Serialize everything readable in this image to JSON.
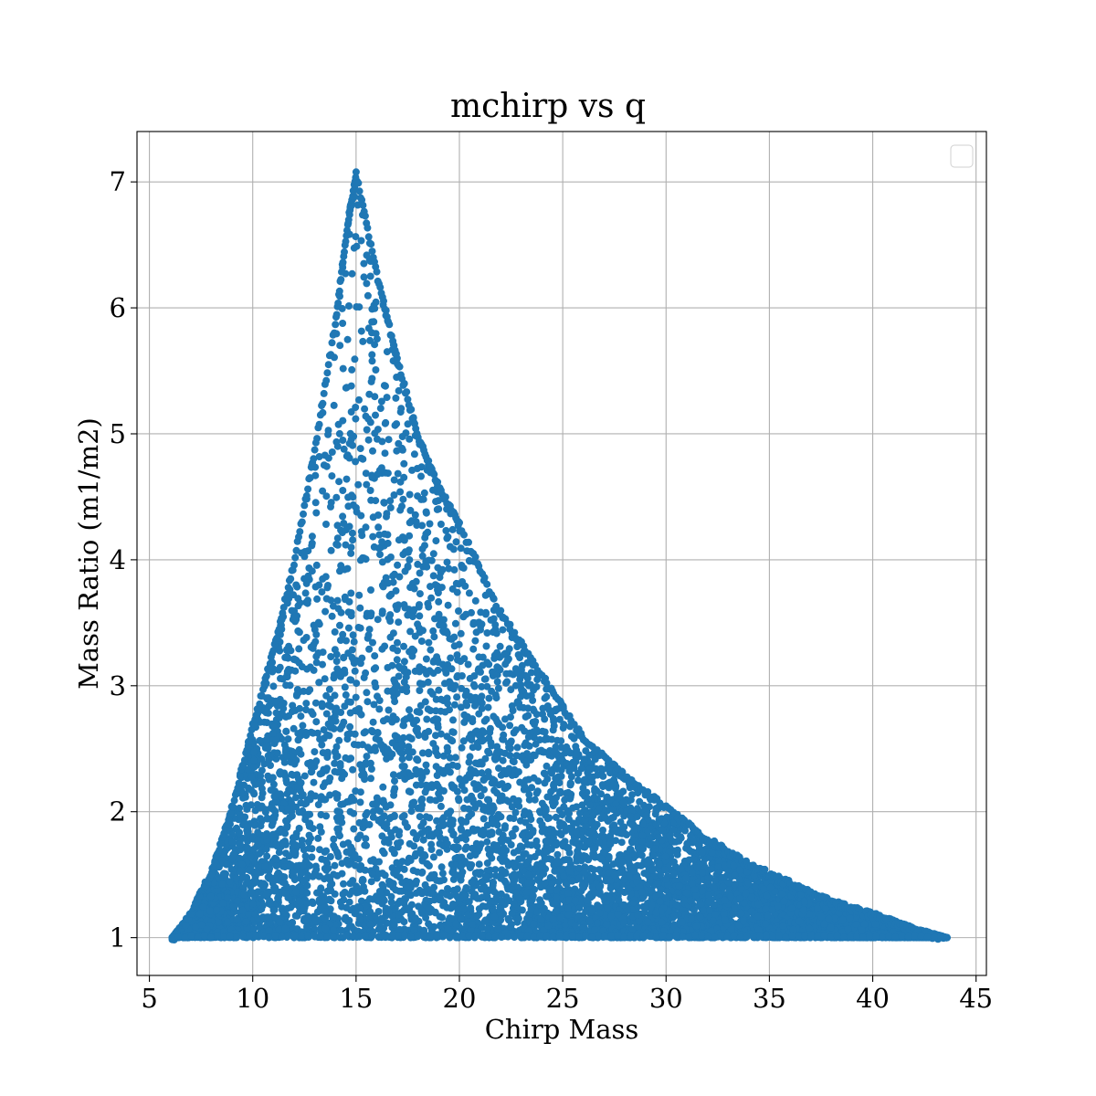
{
  "chart_data": {
    "type": "scatter",
    "title": "mchirp vs q",
    "xlabel": "Chirp Mass",
    "ylabel": "Mass Ratio (m1/m2)",
    "xlim": [
      4.4,
      45.5
    ],
    "ylim": [
      0.7,
      7.4
    ],
    "xticks": [
      5,
      10,
      15,
      20,
      25,
      30,
      35,
      40,
      45
    ],
    "yticks": [
      1,
      2,
      3,
      4,
      5,
      6,
      7
    ],
    "grid": true,
    "legend": {
      "placement": "upper-right",
      "entries": []
    },
    "series": [
      {
        "color": "#1f77b4",
        "marker": "circle",
        "description_envelope": {
          "min_x": 6.1,
          "peak": [
            15.0,
            7.08
          ],
          "max_x": 43.6,
          "min_q": 1.0,
          "left_edge": [
            [
              6.1,
              1.0
            ],
            [
              7.0,
              1.2
            ],
            [
              8.0,
              1.55
            ],
            [
              9.0,
              2.05
            ],
            [
              10.0,
              2.7
            ],
            [
              11.0,
              3.3
            ],
            [
              12.0,
              4.0
            ],
            [
              13.0,
              4.9
            ],
            [
              14.0,
              5.9
            ],
            [
              14.6,
              6.7
            ],
            [
              15.0,
              7.08
            ]
          ],
          "right_edge": [
            [
              15.0,
              7.08
            ],
            [
              16.0,
              6.3
            ],
            [
              17.0,
              5.6
            ],
            [
              18.0,
              5.0
            ],
            [
              19.0,
              4.6
            ],
            [
              20.0,
              4.3
            ],
            [
              22.0,
              3.6
            ],
            [
              24.0,
              3.1
            ],
            [
              26.0,
              2.6
            ],
            [
              28.0,
              2.3
            ],
            [
              30.0,
              2.05
            ],
            [
              32.0,
              1.8
            ],
            [
              34.0,
              1.6
            ],
            [
              36.0,
              1.45
            ],
            [
              38.0,
              1.3
            ],
            [
              40.0,
              1.2
            ],
            [
              42.0,
              1.08
            ],
            [
              43.6,
              1.0
            ]
          ]
        }
      }
    ]
  }
}
